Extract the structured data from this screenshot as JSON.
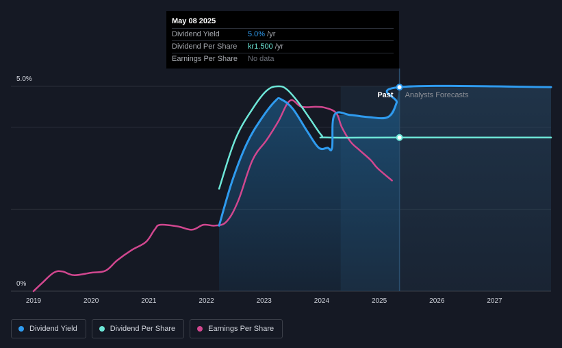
{
  "tooltip": {
    "date": "May 08 2025",
    "rows": [
      {
        "label": "Dividend Yield",
        "value": "5.0%",
        "unit": " /yr",
        "color": "#2f9bef"
      },
      {
        "label": "Dividend Per Share",
        "value": "kr1.500",
        "unit": " /yr",
        "color": "#6ee7d8"
      },
      {
        "label": "Earnings Per Share",
        "value": "No data",
        "unit": "",
        "color": "#6b6f78"
      }
    ]
  },
  "legend": [
    {
      "label": "Dividend Yield",
      "color": "#2f9bef"
    },
    {
      "label": "Dividend Per Share",
      "color": "#6ee7d8"
    },
    {
      "label": "Earnings Per Share",
      "color": "#d1478f"
    }
  ],
  "chart_data": {
    "type": "line",
    "xlim": [
      2019.0,
      2027.98
    ],
    "ylim": [
      0,
      5.0
    ],
    "y_tick_labels": [
      {
        "value": 5.0,
        "label": "5.0%"
      },
      {
        "value": 0,
        "label": "0%"
      }
    ],
    "x_ticks": [
      2019,
      2020,
      2021,
      2022,
      2023,
      2024,
      2025,
      2026,
      2027
    ],
    "past_label": "Past",
    "forecast_label": "Analysts Forecasts",
    "now": 2025.35,
    "forecast_band_start": 2024.33,
    "grid": true,
    "series": [
      {
        "name": "Dividend Yield",
        "color": "#2f9bef",
        "width": 3,
        "points": [
          [
            2022.22,
            1.6
          ],
          [
            2022.45,
            2.7
          ],
          [
            2022.7,
            3.6
          ],
          [
            2022.95,
            4.2
          ],
          [
            2023.2,
            4.65
          ],
          [
            2023.3,
            4.68
          ],
          [
            2023.5,
            4.45
          ],
          [
            2023.75,
            3.9
          ],
          [
            2023.95,
            3.5
          ],
          [
            2024.1,
            3.5
          ],
          [
            2024.18,
            3.5
          ],
          [
            2024.22,
            4.3
          ],
          [
            2024.5,
            4.3
          ],
          [
            2024.8,
            4.25
          ],
          [
            2025.15,
            4.25
          ],
          [
            2025.3,
            4.6
          ],
          [
            2025.35,
            4.98
          ],
          [
            2027.98,
            4.98
          ]
        ]
      },
      {
        "name": "Dividend Per Share",
        "color": "#6ee7d8",
        "width": 2.5,
        "points": [
          [
            2022.22,
            2.5
          ],
          [
            2022.5,
            3.7
          ],
          [
            2022.8,
            4.45
          ],
          [
            2023.05,
            4.9
          ],
          [
            2023.25,
            5.0
          ],
          [
            2023.4,
            4.92
          ],
          [
            2023.6,
            4.6
          ],
          [
            2023.8,
            4.2
          ],
          [
            2024.0,
            3.8
          ],
          [
            2024.1,
            3.75
          ],
          [
            2025.35,
            3.75
          ],
          [
            2027.98,
            3.75
          ]
        ]
      },
      {
        "name": "Earnings Per Share",
        "color": "#d1478f",
        "width": 2.5,
        "points": [
          [
            2019.0,
            0
          ],
          [
            2019.15,
            0.2
          ],
          [
            2019.35,
            0.45
          ],
          [
            2019.5,
            0.48
          ],
          [
            2019.7,
            0.39
          ],
          [
            2020.0,
            0.45
          ],
          [
            2020.25,
            0.5
          ],
          [
            2020.45,
            0.75
          ],
          [
            2020.7,
            1.0
          ],
          [
            2020.95,
            1.2
          ],
          [
            2021.1,
            1.5
          ],
          [
            2021.2,
            1.62
          ],
          [
            2021.5,
            1.58
          ],
          [
            2021.75,
            1.5
          ],
          [
            2021.95,
            1.62
          ],
          [
            2022.15,
            1.6
          ],
          [
            2022.35,
            1.7
          ],
          [
            2022.55,
            2.2
          ],
          [
            2022.8,
            3.2
          ],
          [
            2023.05,
            3.7
          ],
          [
            2023.25,
            4.15
          ],
          [
            2023.45,
            4.65
          ],
          [
            2023.65,
            4.5
          ],
          [
            2023.9,
            4.5
          ],
          [
            2024.05,
            4.48
          ],
          [
            2024.25,
            4.35
          ],
          [
            2024.35,
            4.0
          ],
          [
            2024.5,
            3.65
          ],
          [
            2024.65,
            3.45
          ],
          [
            2024.85,
            3.2
          ],
          [
            2024.97,
            3.0
          ],
          [
            2025.22,
            2.7
          ]
        ]
      }
    ]
  }
}
